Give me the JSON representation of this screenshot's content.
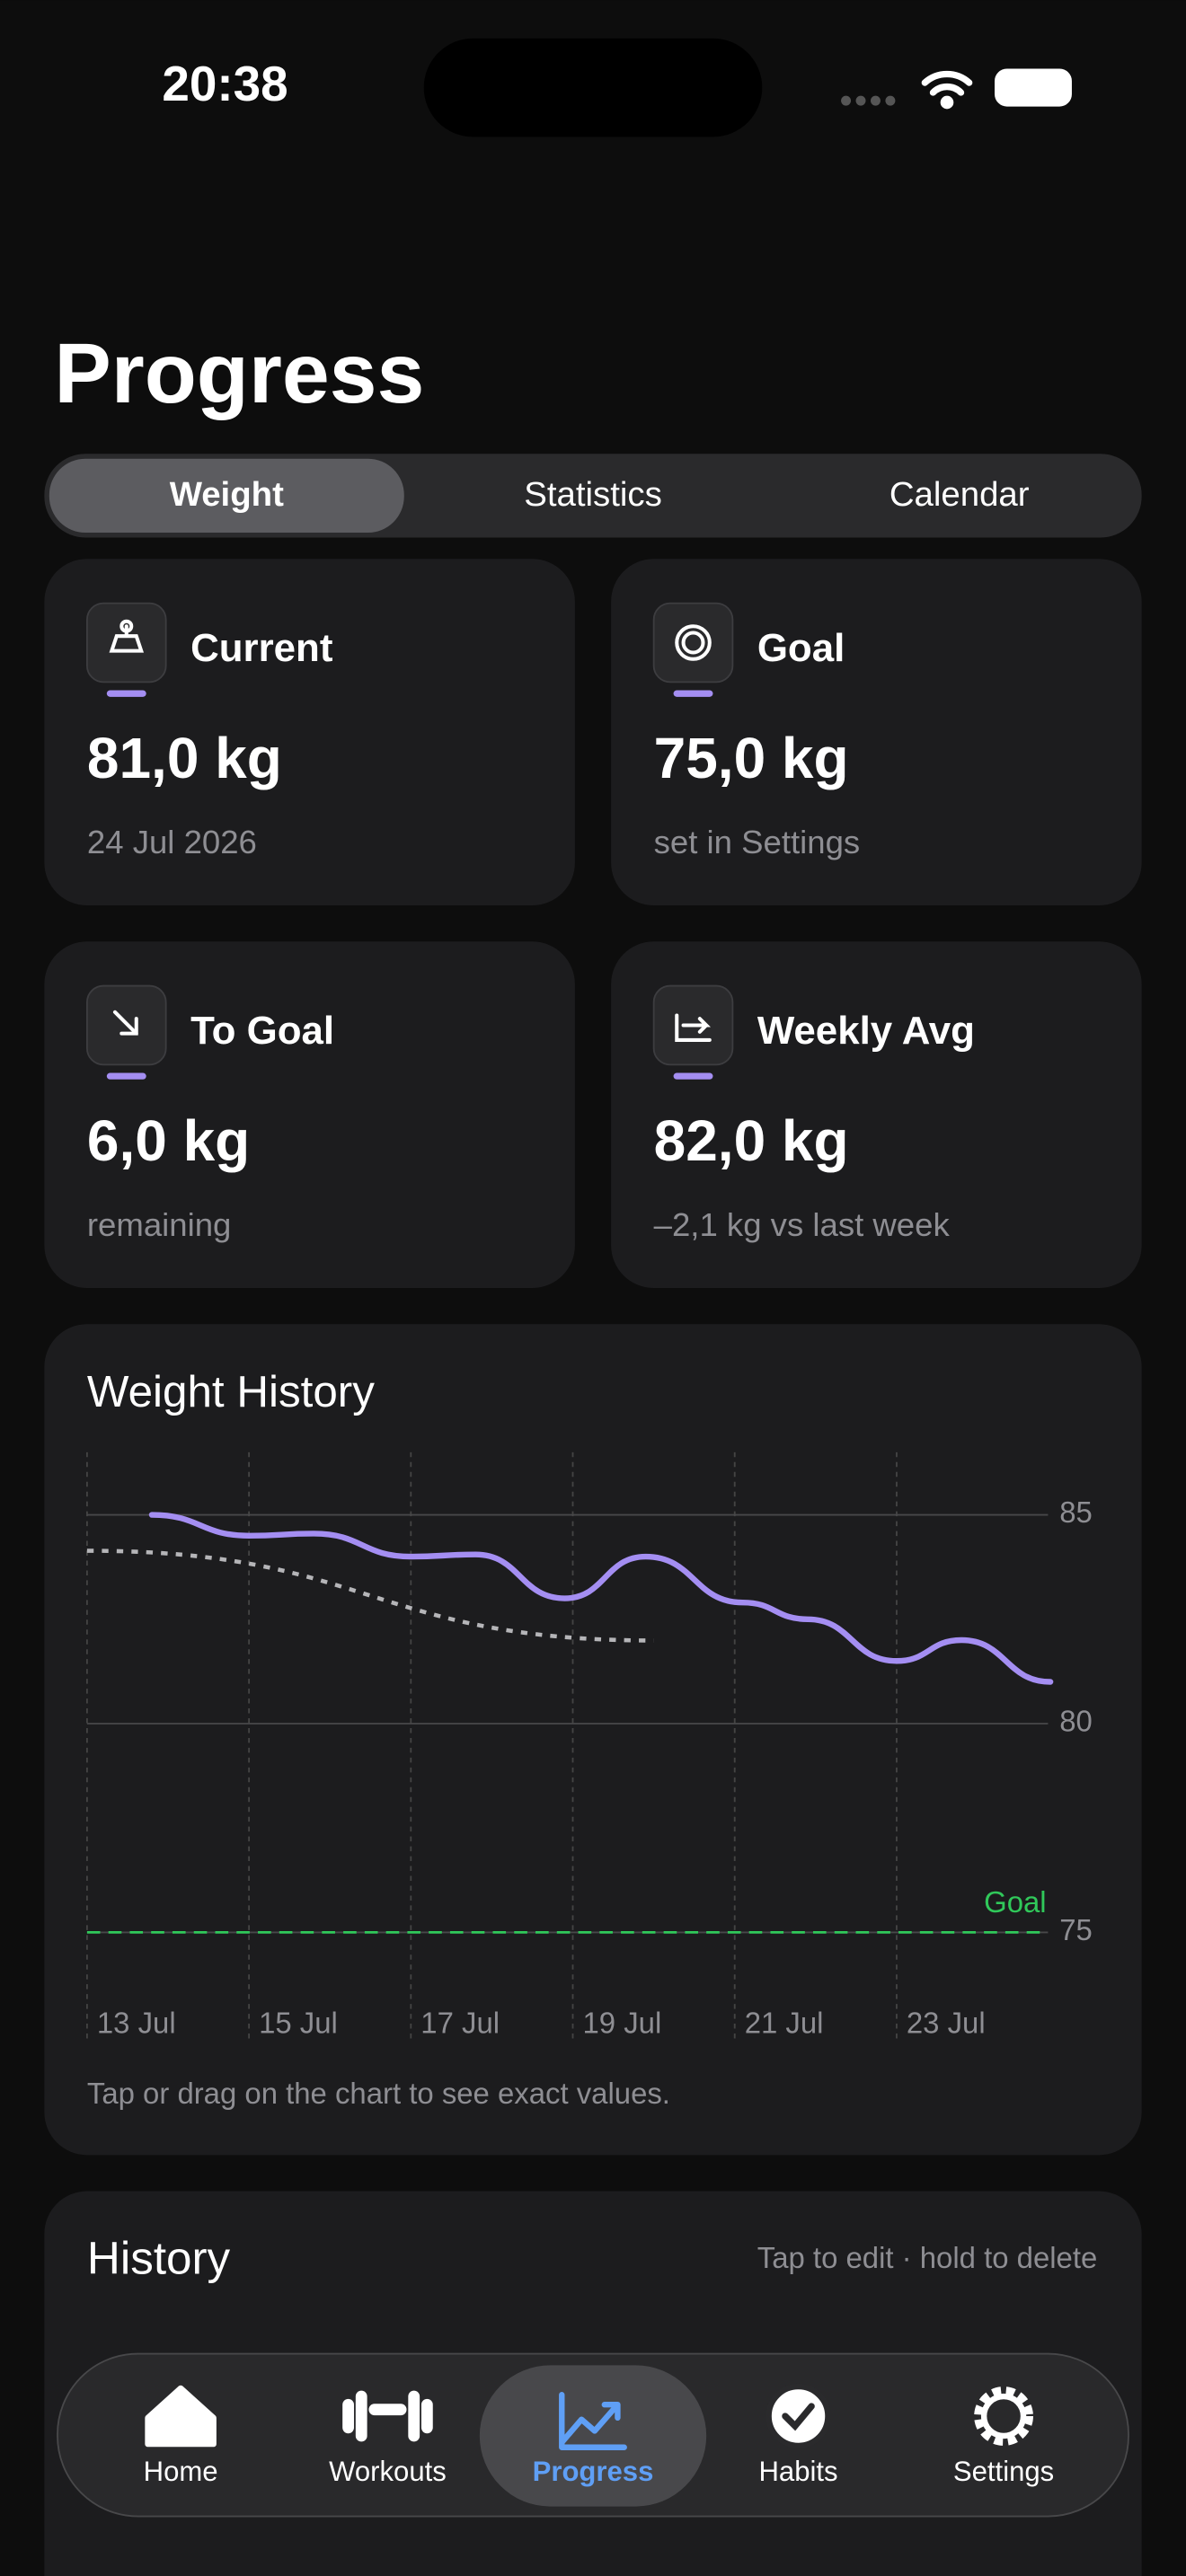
{
  "status_bar": {
    "time": "20:38"
  },
  "header": {
    "title": "Progress"
  },
  "tabs": {
    "items": [
      "Weight",
      "Statistics",
      "Calendar"
    ],
    "active": 0
  },
  "cards": [
    {
      "label": "Current",
      "value": "81,0 kg",
      "caption": "24 Jul 2026"
    },
    {
      "label": "Goal",
      "value": "75,0 kg",
      "caption": "set in Settings"
    },
    {
      "label": "To Goal",
      "value": "6,0 kg",
      "caption": "remaining"
    },
    {
      "label": "Weekly Avg",
      "value": "82,0 kg",
      "caption": "–2,1 kg vs last week"
    }
  ],
  "chart_data": {
    "type": "line",
    "title": "Weight History",
    "x": [
      13.8,
      15.0,
      15.8,
      17.0,
      17.8,
      18.9,
      19.9,
      21.1,
      21.9,
      23.0,
      23.8,
      24.9
    ],
    "series": [
      {
        "color": "#a48ef2",
        "values": [
          85.0,
          84.5,
          84.55,
          84.0,
          84.05,
          83.0,
          84.0,
          82.9,
          82.5,
          81.5,
          82.0,
          81.0
        ]
      }
    ],
    "trend": {
      "color": "#b5b5b8",
      "x": [
        13,
        20
      ],
      "values": [
        84.14,
        81.99
      ]
    },
    "goal": {
      "label": "Goal",
      "value": 75,
      "color": "#30c85a"
    },
    "xlim": [
      13,
      24.87
    ],
    "xticks": [
      {
        "value": 13,
        "label": "13 Jul"
      },
      {
        "value": 15,
        "label": "15 Jul"
      },
      {
        "value": 17,
        "label": "17 Jul"
      },
      {
        "value": 19,
        "label": "19 Jul"
      },
      {
        "value": 21,
        "label": "21 Jul"
      },
      {
        "value": 23,
        "label": "23 Jul"
      }
    ],
    "ylim": [
      73.6,
      86.5
    ],
    "yticks": [
      75,
      80,
      85
    ],
    "grid": true,
    "note": "Tap or drag on the chart to see exact values."
  },
  "history": {
    "title": "History",
    "hint": "Tap to edit · hold to delete"
  },
  "tab_bar": {
    "items": [
      "Home",
      "Workouts",
      "Progress",
      "Habits",
      "Settings"
    ],
    "active": 2
  }
}
